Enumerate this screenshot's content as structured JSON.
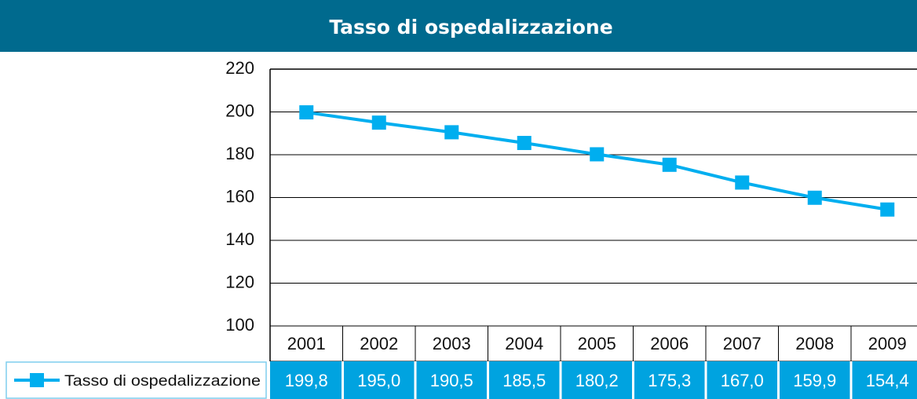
{
  "chart_data": {
    "type": "line",
    "title": "Tasso di ospedalizzazione",
    "categories": [
      "2001",
      "2002",
      "2003",
      "2004",
      "2005",
      "2006",
      "2007",
      "2008",
      "2009"
    ],
    "series": [
      {
        "name": "Tasso di ospedalizzazione",
        "color": "#00aeef",
        "values": [
          199.8,
          195.0,
          190.5,
          185.5,
          180.2,
          175.3,
          167.0,
          159.9,
          154.4
        ],
        "value_labels": [
          "199,8",
          "195,0",
          "190,5",
          "185,5",
          "180,2",
          "175,3",
          "167,0",
          "159,9",
          "154,4"
        ]
      }
    ],
    "ylim": [
      100,
      220
    ],
    "yticks": [
      100,
      120,
      140,
      160,
      180,
      200,
      220
    ],
    "grid": true
  }
}
